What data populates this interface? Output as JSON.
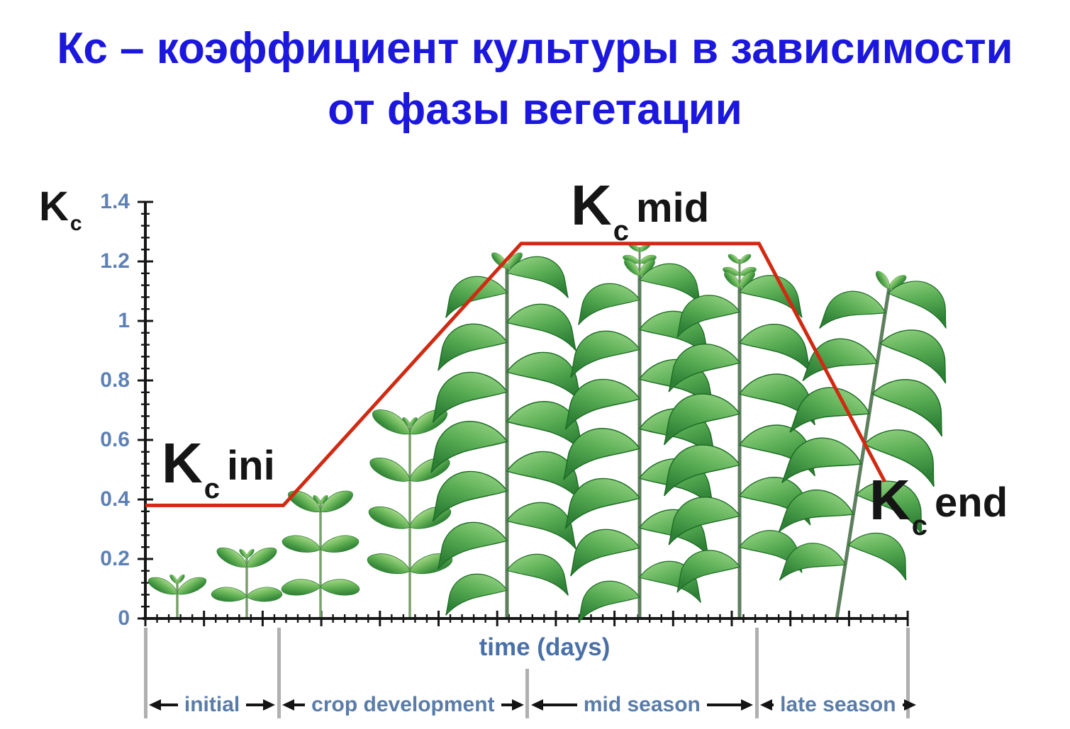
{
  "title": {
    "line1": "Кс – коэффициент культуры в зависимости",
    "line2": "от фазы вегетации"
  },
  "labels": {
    "axis_kc": {
      "k": "K",
      "sub": "c"
    },
    "kc_ini": {
      "k": "K",
      "sub": "c",
      "word": "ini"
    },
    "kc_mid": {
      "k": "K",
      "sub": "c",
      "word": "mid"
    },
    "kc_end": {
      "k": "K",
      "sub": "c",
      "word": "end"
    }
  },
  "chart_data": {
    "type": "line",
    "title": "Crop coefficient Kc versus vegetation phase",
    "xlabel": "time (days)",
    "ylabel": "Kc",
    "ylim": [
      0,
      1.4
    ],
    "grid": false,
    "y_ticks": [
      "0",
      "0.2",
      "0.4",
      "0.6",
      "0.8",
      "1",
      "1.2",
      "1.4"
    ],
    "y_minor_step": 0.04,
    "kc_values": {
      "kc_ini": 0.38,
      "kc_mid": 1.26,
      "kc_end": 0.46
    },
    "series": [
      {
        "name": "Kc curve",
        "color": "#d02a12",
        "x_frac": [
          0,
          0.181,
          0.493,
          0.805,
          0.97
        ],
        "kc": [
          0.38,
          0.38,
          1.26,
          1.26,
          0.46
        ]
      }
    ],
    "stages": [
      {
        "label": "initial",
        "span_frac": [
          0,
          0.175
        ]
      },
      {
        "label": "crop development",
        "span_frac": [
          0.175,
          0.501
        ]
      },
      {
        "label": "mid season",
        "span_frac": [
          0.501,
          0.802
        ]
      },
      {
        "label": "late season",
        "span_frac": [
          0.802,
          1.0
        ]
      }
    ],
    "annotations": [
      "Kc ini",
      "Kc mid",
      "Kc end"
    ]
  },
  "colors": {
    "title": "#1b17dd",
    "curve": "#d02a12",
    "axis": "#161616",
    "tick_labels": "#5d81b5",
    "stage_labels": "#5a7ca8",
    "divider": "#b0b0b0"
  }
}
